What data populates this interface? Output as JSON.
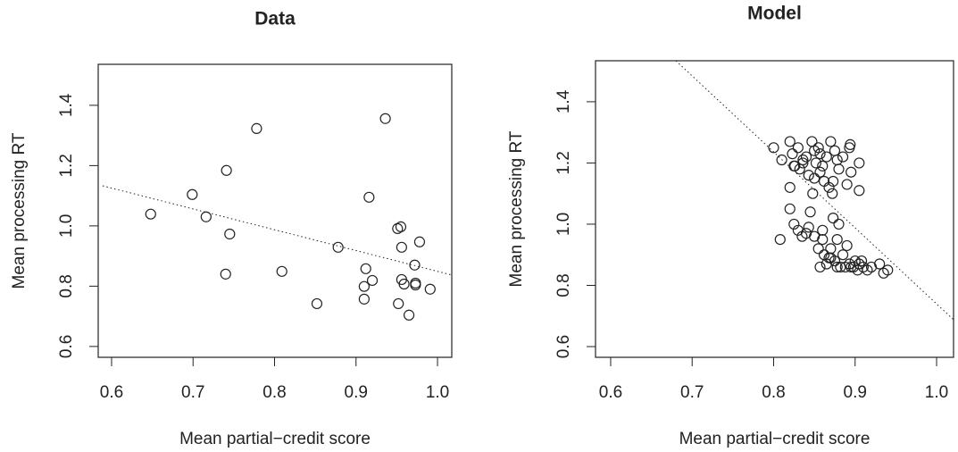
{
  "chart_data": [
    {
      "type": "scatter",
      "title": "Data",
      "xlabel": "Mean partial−credit score",
      "ylabel": "Mean processing RT",
      "x": [
        0.648,
        0.699,
        0.716,
        0.741,
        0.745,
        0.74,
        0.778,
        0.809,
        0.852,
        0.878,
        0.91,
        0.91,
        0.912,
        0.916,
        0.92,
        0.936,
        0.951,
        0.955,
        0.956,
        0.952,
        0.956,
        0.959,
        0.965,
        0.972,
        0.973,
        0.973,
        0.978,
        0.991
      ],
      "y": [
        1.039,
        1.104,
        1.03,
        1.184,
        0.973,
        0.84,
        1.323,
        0.849,
        0.742,
        0.929,
        0.757,
        0.799,
        0.858,
        1.095,
        0.819,
        1.356,
        0.991,
        0.997,
        0.929,
        0.742,
        0.822,
        0.807,
        0.704,
        0.87,
        0.81,
        0.804,
        0.947,
        0.79
      ],
      "fit_line": {
        "x": [
          0.589,
          1.0175
        ],
        "y": [
          1.133,
          0.837
        ]
      },
      "xlim": [
        0.5836,
        1.0175
      ],
      "ylim": [
        0.564,
        1.536
      ],
      "xticks": [
        0.6,
        0.7,
        0.8,
        0.9,
        {
          "value": 1,
          "label": "1.0"
        }
      ],
      "yticks": [
        0.6,
        0.8,
        {
          "value": 1,
          "label": "1.0"
        },
        1.2,
        1.4
      ]
    },
    {
      "type": "scatter",
      "title": "Model",
      "xlabel": "Mean partial−credit score",
      "ylabel": "Mean processing RT",
      "x": [
        0.8,
        0.81,
        0.82,
        0.823,
        0.826,
        0.83,
        0.832,
        0.836,
        0.84,
        0.843,
        0.847,
        0.85,
        0.852,
        0.855,
        0.857,
        0.86,
        0.862,
        0.865,
        0.868,
        0.87,
        0.872,
        0.875,
        0.878,
        0.88,
        0.885,
        0.89,
        0.893,
        0.895,
        0.905,
        0.905,
        0.82,
        0.85,
        0.848,
        0.857,
        0.836,
        0.873,
        0.82,
        0.825,
        0.894,
        0.808,
        0.825,
        0.83,
        0.835,
        0.84,
        0.845,
        0.85,
        0.855,
        0.857,
        0.86,
        0.862,
        0.865,
        0.868,
        0.87,
        0.873,
        0.875,
        0.878,
        0.88,
        0.882,
        0.885,
        0.888,
        0.89,
        0.893,
        0.895,
        0.9,
        0.903,
        0.905,
        0.91,
        0.915,
        0.92,
        0.93,
        0.935,
        0.94,
        0.87,
        0.898,
        0.86,
        0.843,
        0.878,
        0.908
      ],
      "y": [
        1.25,
        1.21,
        1.27,
        1.23,
        1.19,
        1.25,
        1.18,
        1.2,
        1.22,
        1.16,
        1.27,
        1.24,
        1.2,
        1.25,
        1.17,
        1.19,
        1.14,
        1.22,
        1.12,
        1.27,
        1.1,
        1.24,
        1.21,
        1.18,
        1.22,
        1.13,
        1.25,
        1.17,
        1.2,
        1.11,
        1.12,
        1.15,
        1.1,
        1.23,
        1.21,
        1.14,
        1.05,
        1.19,
        1.26,
        0.95,
        1.0,
        0.98,
        0.96,
        0.97,
        1.04,
        0.96,
        0.92,
        0.86,
        0.98,
        0.9,
        0.87,
        0.89,
        0.92,
        1.02,
        0.88,
        0.95,
        1.0,
        0.86,
        0.9,
        0.86,
        0.93,
        0.87,
        0.86,
        0.88,
        0.85,
        0.87,
        0.86,
        0.85,
        0.86,
        0.87,
        0.84,
        0.85,
        0.89,
        0.86,
        0.95,
        0.99,
        0.86,
        0.88
      ],
      "fit_line": {
        "x": [
          0.68,
          1.0208
        ],
        "y": [
          1.534,
          0.688
        ]
      },
      "xlim": [
        0.5814,
        1.0208
      ],
      "ylim": [
        0.565,
        1.534
      ],
      "xticks": [
        0.6,
        0.7,
        0.8,
        0.9,
        {
          "value": 1,
          "label": "1.0"
        }
      ],
      "yticks": [
        0.6,
        0.8,
        {
          "value": 1,
          "label": "1.0"
        },
        1.2,
        1.4
      ]
    }
  ]
}
